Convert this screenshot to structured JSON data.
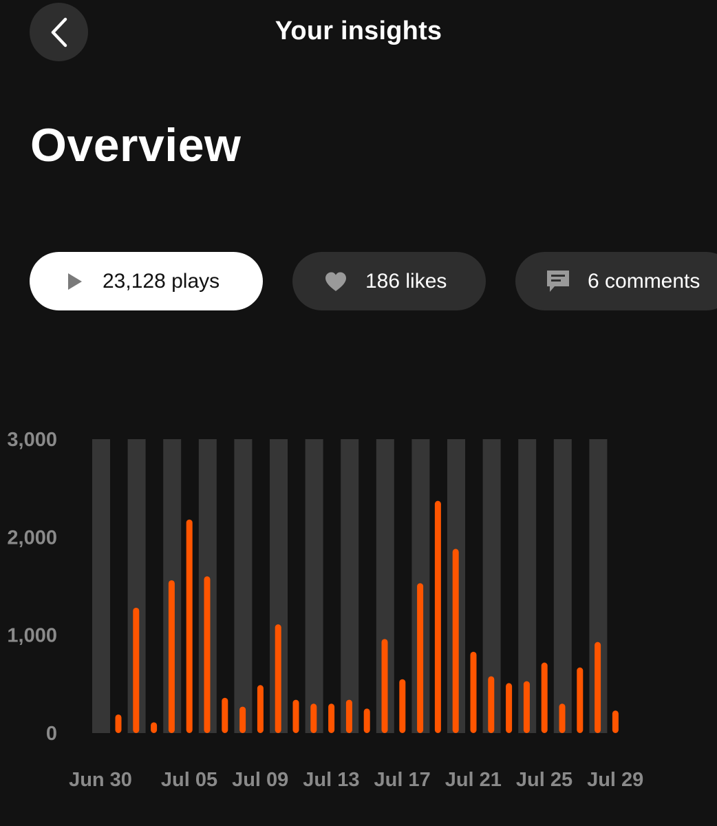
{
  "header": {
    "title": "Your insights",
    "back_icon": "chevron-left-icon"
  },
  "page": {
    "title": "Overview"
  },
  "stats": {
    "plays": {
      "label": "23,128 plays",
      "icon": "play-icon",
      "selected": true
    },
    "likes": {
      "label": "186 likes",
      "icon": "heart-icon",
      "selected": false
    },
    "comments": {
      "label": "6 comments",
      "icon": "comment-icon",
      "selected": false
    }
  },
  "colors": {
    "background": "#121212",
    "accent": "#ff5500",
    "band": "#363636",
    "pill_inactive": "#2e2e2e",
    "axis_text": "#8a8a8a"
  },
  "chart_data": {
    "type": "bar",
    "ylim": [
      0,
      3000
    ],
    "yticks": [
      {
        "value": 3000,
        "label": "3,000"
      },
      {
        "value": 2000,
        "label": "2,000"
      },
      {
        "value": 1000,
        "label": "1,000"
      },
      {
        "value": 0,
        "label": "0"
      }
    ],
    "xtick_labels": [
      "Jun 30",
      "Jul 05",
      "Jul 09",
      "Jul 13",
      "Jul 17",
      "Jul 21",
      "Jul 25",
      "Jul 29"
    ],
    "categories": [
      "Jun 30",
      "Jul 01",
      "Jul 02",
      "Jul 03",
      "Jul 04",
      "Jul 05",
      "Jul 06",
      "Jul 07",
      "Jul 08",
      "Jul 09",
      "Jul 10",
      "Jul 11",
      "Jul 12",
      "Jul 13",
      "Jul 14",
      "Jul 15",
      "Jul 16",
      "Jul 17",
      "Jul 18",
      "Jul 19",
      "Jul 20",
      "Jul 21",
      "Jul 22",
      "Jul 23",
      "Jul 24",
      "Jul 25",
      "Jul 26",
      "Jul 27",
      "Jul 28",
      "Jul 29"
    ],
    "values": [
      190,
      1280,
      110,
      1560,
      2180,
      1600,
      360,
      270,
      490,
      1110,
      340,
      300,
      300,
      340,
      250,
      960,
      550,
      1530,
      2370,
      1880,
      830,
      580,
      510,
      530,
      720,
      300,
      670,
      930,
      230,
      0
    ],
    "grid": false,
    "legend": "none"
  }
}
